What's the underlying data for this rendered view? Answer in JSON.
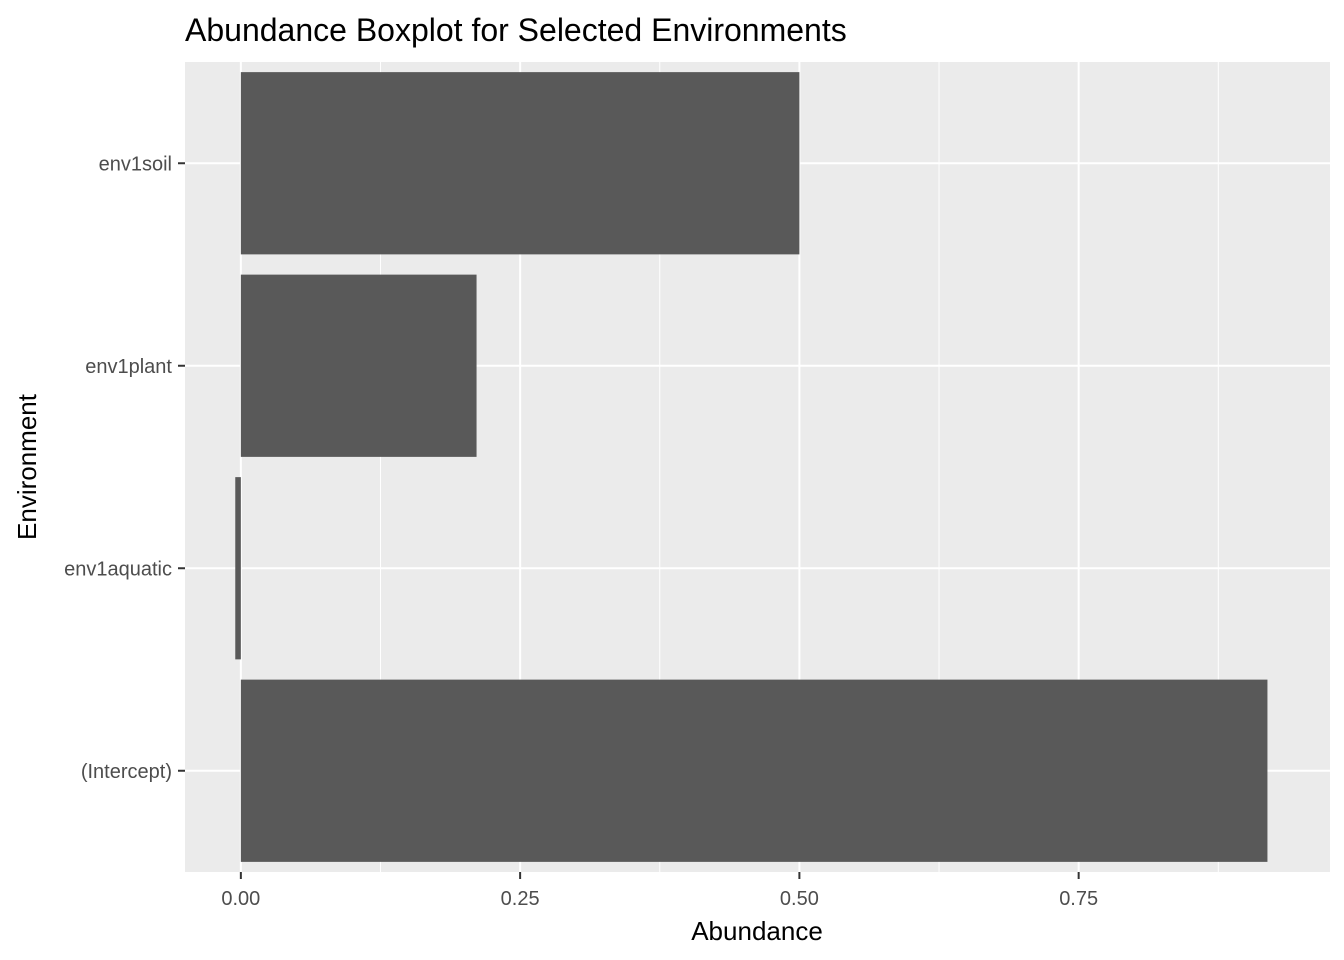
{
  "chart_data": {
    "type": "bar",
    "orientation": "horizontal",
    "title": "Abundance Boxplot for Selected Environments",
    "xlabel": "Abundance",
    "ylabel": "Environment",
    "categories": [
      "(Intercept)",
      "env1aquatic",
      "env1plant",
      "env1soil"
    ],
    "values": [
      0.919,
      -0.005,
      0.211,
      0.5
    ],
    "xlim": [
      -0.05,
      0.975
    ],
    "xticks": [
      0.0,
      0.25,
      0.5,
      0.75
    ],
    "xtick_labels": [
      "0.00",
      "0.25",
      "0.50",
      "0.75"
    ],
    "grid": true,
    "bar_color": "#595959",
    "panel_background": "#EBEBEB",
    "grid_color": "#FFFFFF"
  }
}
